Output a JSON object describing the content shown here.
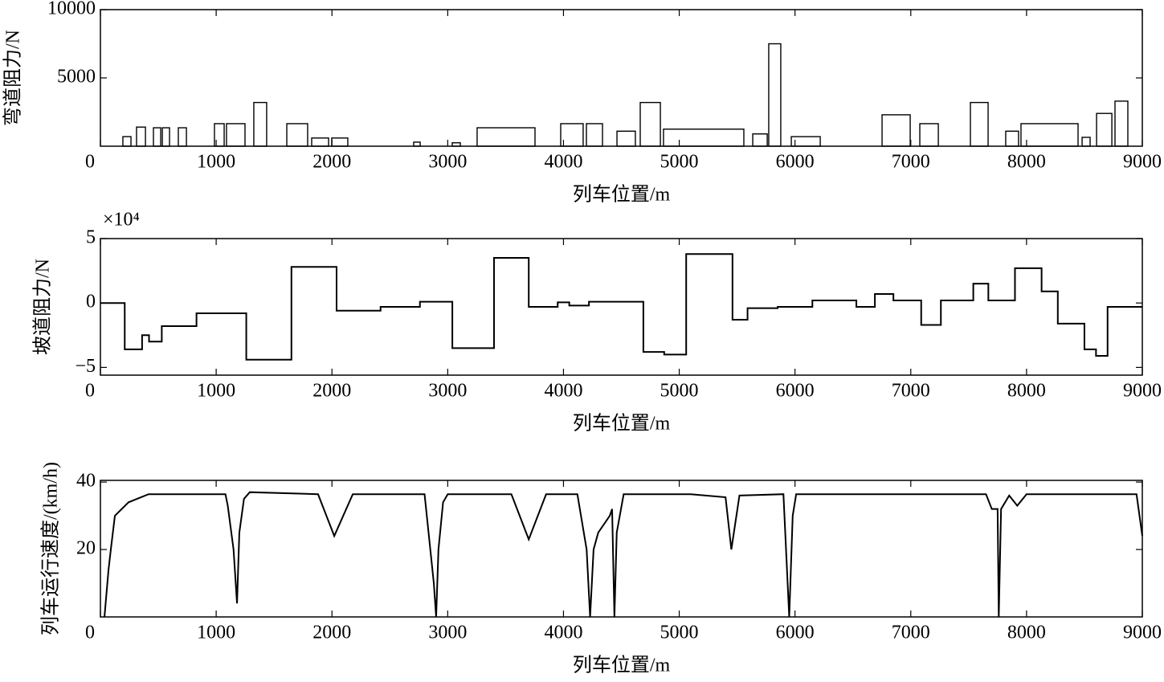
{
  "chart_data": [
    {
      "type": "bar",
      "ylabel": "弯道阻力/N",
      "xlabel": "列车位置/m",
      "x_start": [
        194,
        312,
        458,
        535,
        673,
        985,
        1089,
        1325,
        1610,
        1825,
        1998,
        2706,
        3039,
        3254,
        3976,
        4198,
        4462,
        4663,
        4864,
        5635,
        5773,
        5968,
        6752,
        7078,
        7515,
        7820,
        7952,
        8480,
        8605,
        8764
      ],
      "x_end": [
        264,
        389,
        521,
        597,
        743,
        1069,
        1249,
        1436,
        1790,
        1971,
        2137,
        2762,
        3109,
        3754,
        4170,
        4337,
        4621,
        4837,
        5558,
        5760,
        5877,
        6218,
        6995,
        7238,
        7668,
        7931,
        8445,
        8549,
        8737,
        8875
      ],
      "values": [
        700,
        1400,
        1350,
        1350,
        1350,
        1650,
        1650,
        3200,
        1650,
        600,
        600,
        300,
        250,
        1350,
        1650,
        1650,
        1100,
        3200,
        1250,
        900,
        7500,
        700,
        2300,
        1650,
        3200,
        1100,
        1650,
        650,
        2400,
        3300
      ],
      "color": "#000000",
      "xlim": [
        0,
        9000
      ],
      "xticks": [
        0,
        1000,
        2000,
        3000,
        4000,
        5000,
        6000,
        7000,
        8000,
        9000
      ],
      "ylim": [
        0,
        10000
      ],
      "yticks": [
        5000,
        10000
      ]
    },
    {
      "type": "line",
      "ylabel": "坡道阻力/N",
      "xlabel": "列车位置/m",
      "y_multiplier": "×10⁴",
      "x": [
        0,
        210,
        210,
        360,
        360,
        420,
        420,
        530,
        530,
        830,
        830,
        1260,
        1260,
        1650,
        1650,
        2040,
        2040,
        2420,
        2420,
        2760,
        2760,
        3040,
        3040,
        3400,
        3400,
        3700,
        3700,
        3950,
        3950,
        4050,
        4050,
        4220,
        4220,
        4690,
        4690,
        4870,
        4870,
        5060,
        5060,
        5460,
        5460,
        5590,
        5590,
        5850,
        5850,
        6150,
        6150,
        6530,
        6530,
        6690,
        6690,
        6850,
        6850,
        7090,
        7090,
        7260,
        7260,
        7540,
        7540,
        7670,
        7670,
        7900,
        7900,
        8130,
        8130,
        8270,
        8270,
        8500,
        8500,
        8600,
        8600,
        8700,
        8700,
        9000
      ],
      "values": [
        0,
        0,
        -3.6,
        -3.6,
        -2.5,
        -2.5,
        -3,
        -3,
        -1.8,
        -1.8,
        -0.8,
        -0.8,
        -4.4,
        -4.4,
        2.8,
        2.8,
        -0.6,
        -0.6,
        -0.3,
        -0.3,
        0.1,
        0.1,
        -3.5,
        -3.5,
        3.5,
        3.5,
        -0.3,
        -0.3,
        0.05,
        0.05,
        -0.2,
        -0.2,
        0.1,
        0.1,
        -3.8,
        -3.8,
        -4.0,
        -4.0,
        3.8,
        3.8,
        -1.3,
        -1.3,
        -0.4,
        -0.4,
        -0.3,
        -0.3,
        0.2,
        0.2,
        -0.3,
        -0.3,
        0.7,
        0.7,
        0.2,
        0.2,
        -1.7,
        -1.7,
        0.2,
        0.2,
        1.5,
        1.5,
        0.2,
        0.2,
        2.7,
        2.7,
        0.9,
        0.9,
        -1.6,
        -1.6,
        -3.6,
        -3.6,
        -4.1,
        -4.1,
        -0.3,
        -0.3
      ],
      "color": "#000000",
      "xlim": [
        0,
        9000
      ],
      "xticks": [
        0,
        1000,
        2000,
        3000,
        4000,
        5000,
        6000,
        7000,
        8000,
        9000
      ],
      "ylim": [
        -5.6,
        5
      ],
      "yticks": [
        {
          "value": -5,
          "label": "−5"
        },
        0,
        5
      ]
    },
    {
      "type": "line",
      "ylabel": "列车运行速度/(km/h)",
      "xlabel": "列车位置/m",
      "x": [
        35,
        70,
        90,
        125,
        243,
        416,
        1080,
        1100,
        1150,
        1180,
        1200,
        1240,
        1290,
        1880,
        2020,
        2180,
        2800,
        2880,
        2900,
        2920,
        2960,
        3000,
        3550,
        3700,
        3850,
        4120,
        4200,
        4230,
        4260,
        4300,
        4400,
        4420,
        4440,
        4460,
        4520,
        5100,
        5400,
        5450,
        5520,
        5900,
        5950,
        5980,
        6010,
        7650,
        7700,
        7750,
        7760,
        7780,
        7850,
        7920,
        8000,
        8950,
        9000
      ],
      "values": [
        0,
        14,
        20,
        30,
        34,
        36.4,
        36.4,
        33,
        20,
        4,
        25,
        35,
        37,
        36.4,
        24,
        36.4,
        36.4,
        10,
        0,
        20,
        34,
        36.4,
        36.4,
        23,
        36.4,
        36.4,
        20,
        0,
        20,
        25,
        30,
        32,
        0,
        25,
        36.4,
        36.4,
        35.5,
        20,
        36,
        36.4,
        0,
        30,
        36.4,
        36.4,
        32,
        32,
        0,
        32,
        36,
        33,
        36.4,
        36.4,
        24
      ],
      "color": "#000000",
      "xlim": [
        0,
        9000
      ],
      "xticks": [
        0,
        1000,
        2000,
        3000,
        4000,
        5000,
        6000,
        7000,
        8000,
        9000
      ],
      "ylim": [
        0,
        40.5
      ],
      "yticks": [
        20,
        40
      ]
    }
  ]
}
